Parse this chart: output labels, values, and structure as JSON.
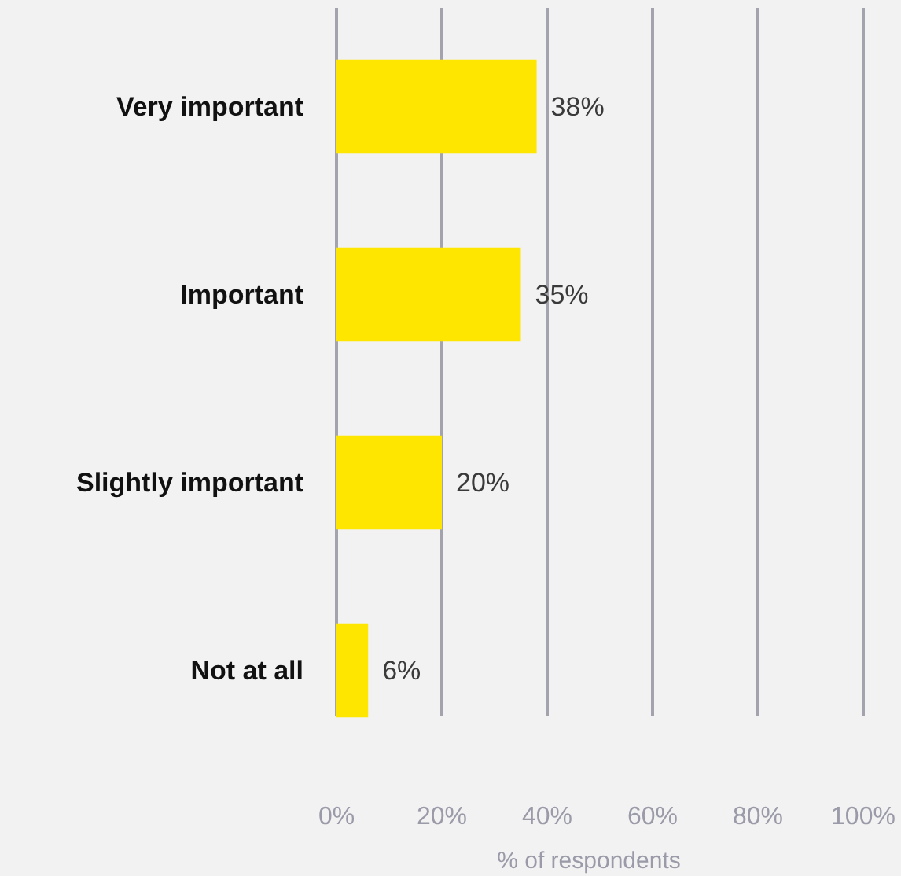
{
  "chart_data": {
    "type": "bar",
    "orientation": "horizontal",
    "xlabel": "% of respondents",
    "categories": [
      "Very important",
      "Important",
      "Slightly important",
      "Not at all"
    ],
    "values": [
      38,
      35,
      20,
      6
    ],
    "color": "#ffe600",
    "value_labels": [
      "38%",
      "35%",
      "20%",
      "6%"
    ],
    "xlim": [
      0,
      100
    ],
    "xticks": [
      {
        "value": 0,
        "label": "0%"
      },
      {
        "value": 20,
        "label": "20%"
      },
      {
        "value": 40,
        "label": "40%"
      },
      {
        "value": 60,
        "label": "60%"
      },
      {
        "value": 80,
        "label": "80%"
      },
      {
        "value": 100,
        "label": "100%"
      }
    ],
    "grid": "x"
  }
}
